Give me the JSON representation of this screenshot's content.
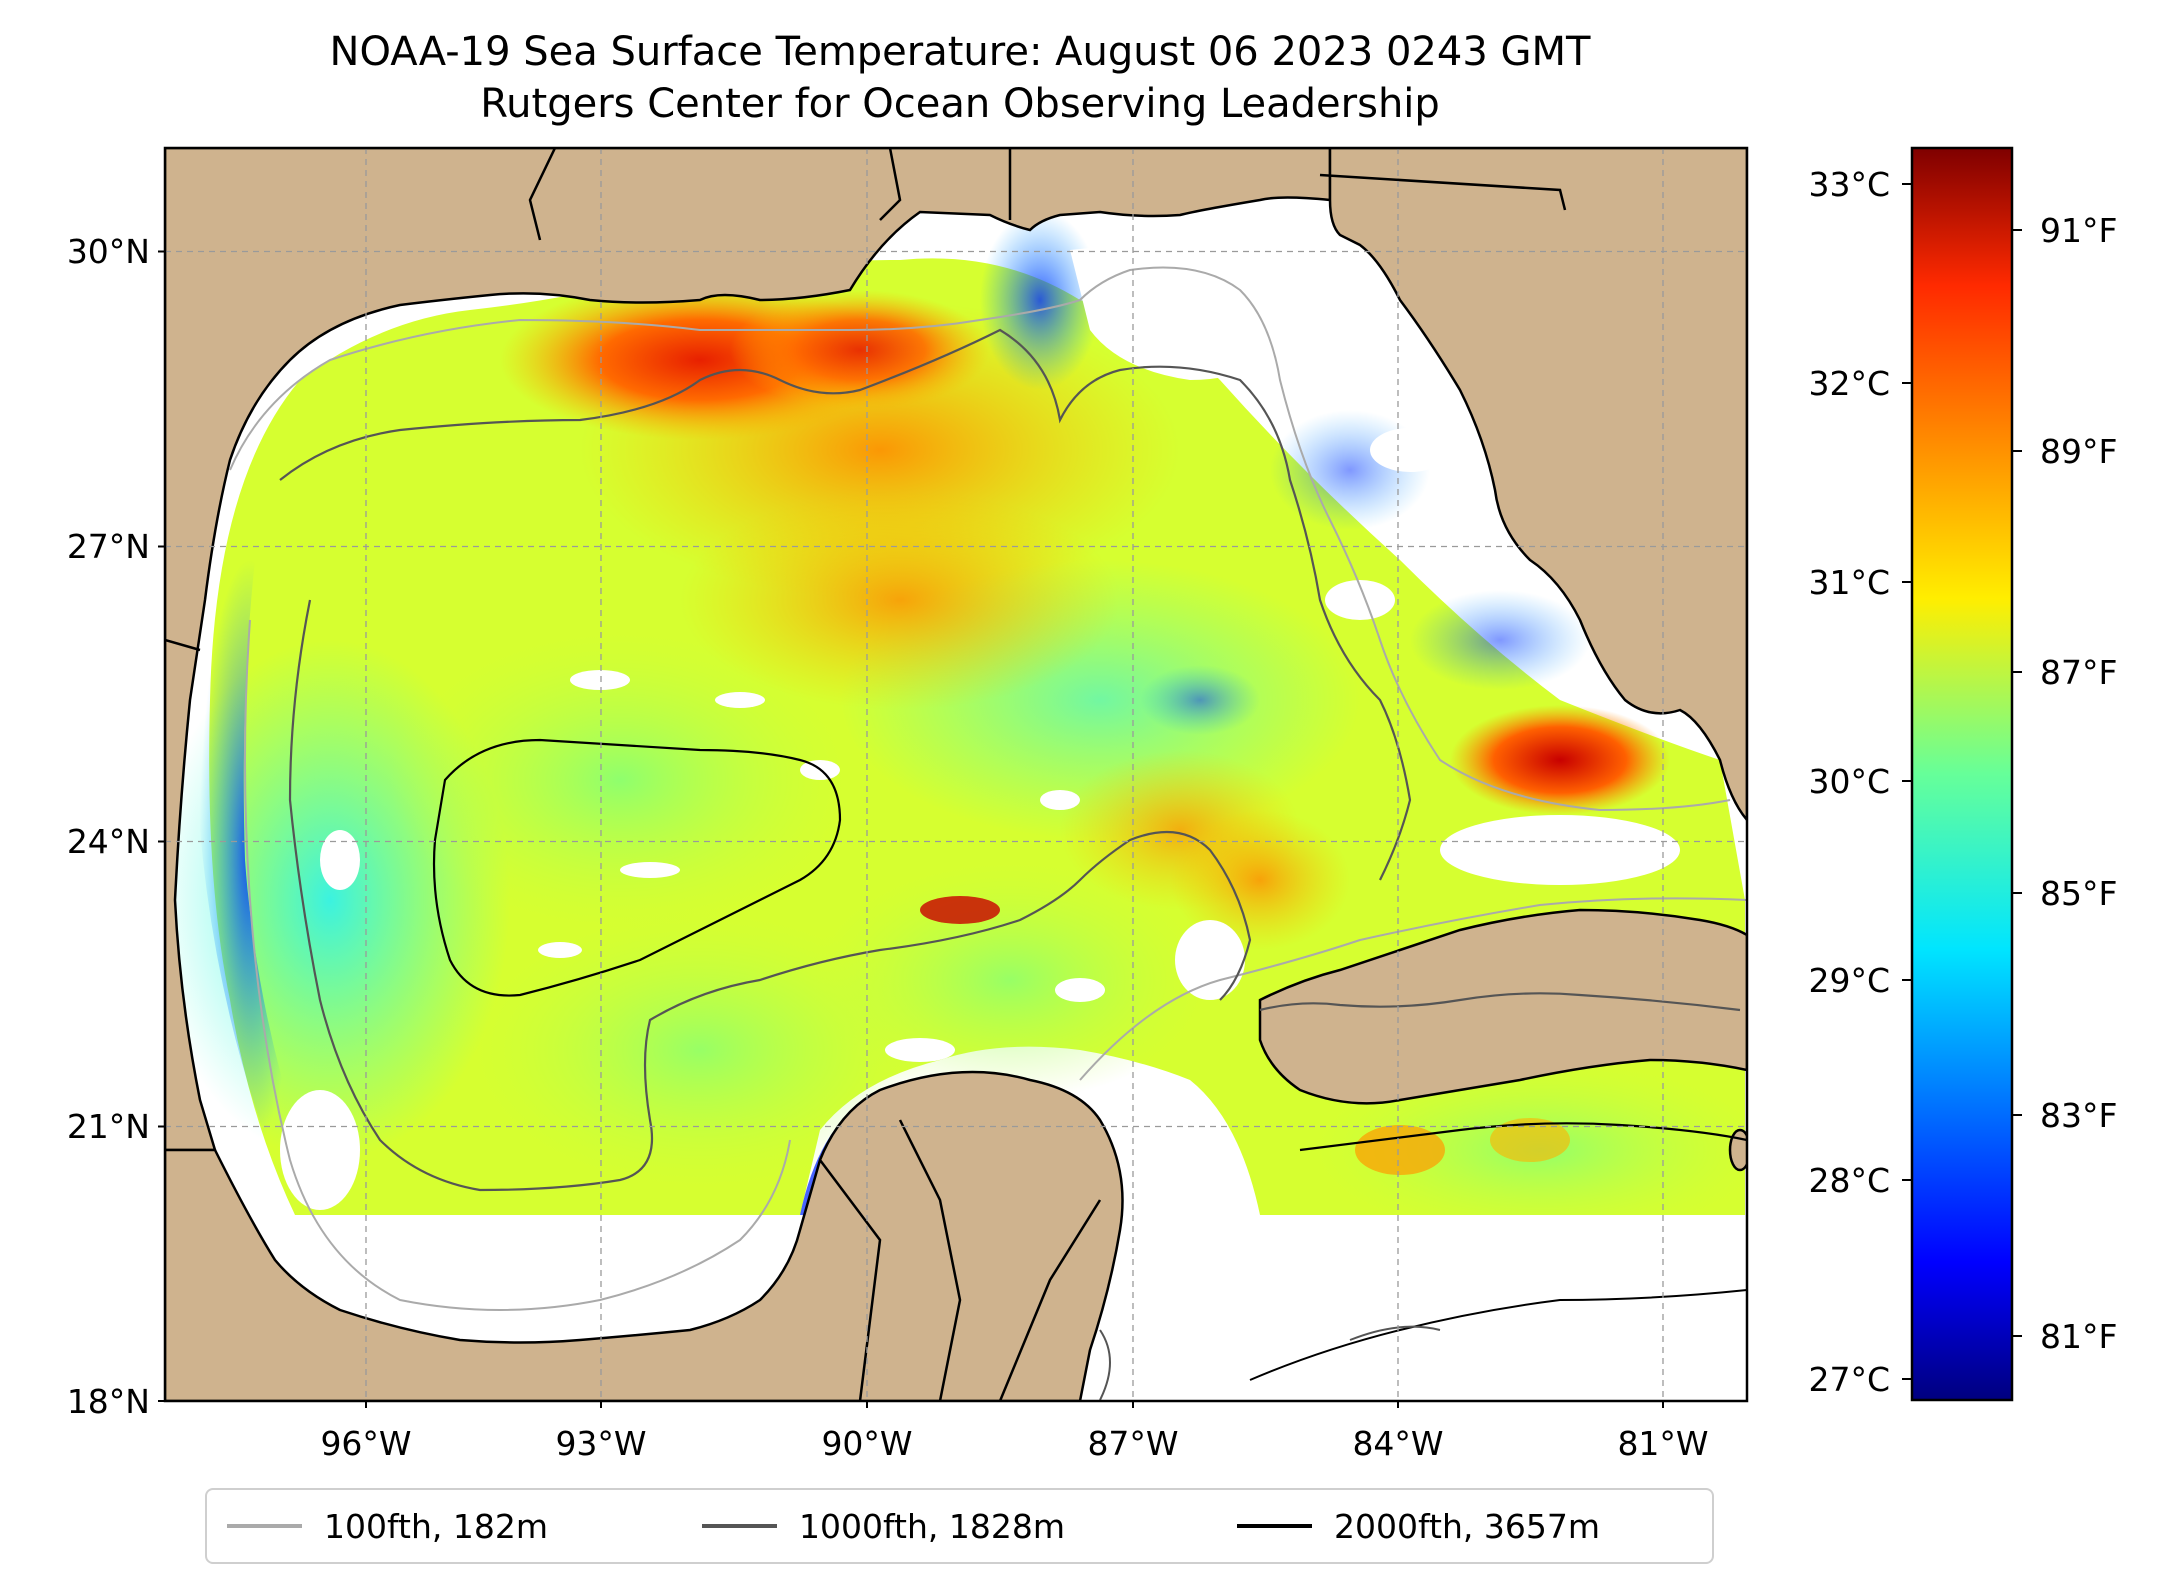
{
  "title": {
    "line1": "NOAA-19 Sea Surface Temperature: August 06 2023 0243 GMT",
    "line2": "Rutgers Center for Ocean Observing Leadership"
  },
  "map": {
    "extent": {
      "lon_min": -98.0,
      "lon_max": -80.3,
      "lat_min": 18.0,
      "lat_max": 31.0
    },
    "lat_labels": [
      "30°N",
      "27°N",
      "24°N",
      "21°N",
      "18°N"
    ],
    "lon_labels": [
      "96°W",
      "93°W",
      "90°W",
      "87°W",
      "84°W",
      "81°W"
    ],
    "land_color": "#cfb38e",
    "water_missing_color": "#ffffff",
    "gridlines": true
  },
  "colorbar": {
    "colormap": "jet",
    "range_c": [
      26.9,
      33.2
    ],
    "celsius_labels": [
      "33°C",
      "32°C",
      "31°C",
      "30°C",
      "29°C",
      "28°C",
      "27°C"
    ],
    "fahrenheit_labels": [
      "91°F",
      "89°F",
      "87°F",
      "85°F",
      "83°F",
      "81°F"
    ]
  },
  "legend": {
    "items": [
      {
        "label": "100fth, 182m",
        "color": "#aaaaaa"
      },
      {
        "label": "1000fth, 1828m",
        "color": "#555555"
      },
      {
        "label": "2000fth, 3657m",
        "color": "#000000"
      }
    ]
  }
}
